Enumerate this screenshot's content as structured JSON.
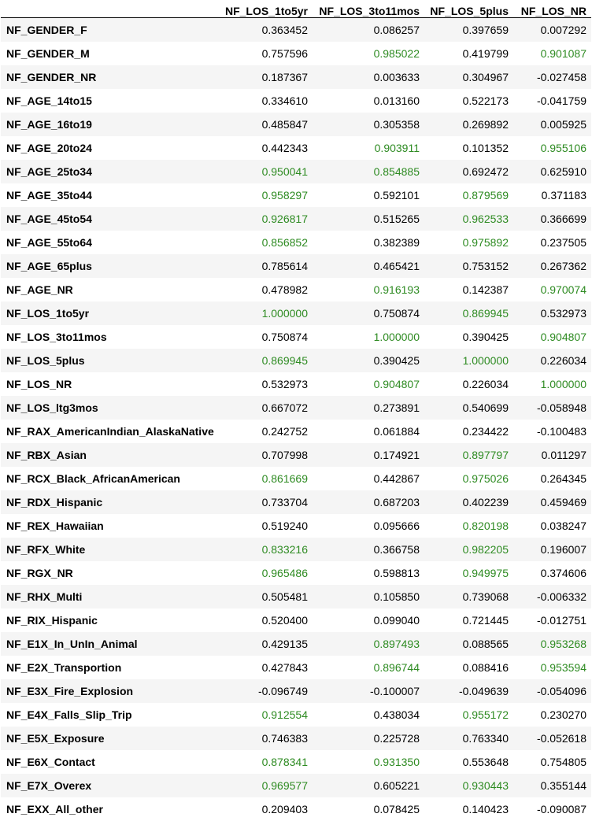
{
  "table": {
    "columns": [
      "",
      "NF_LOS_1to5yr",
      "NF_LOS_3to11mos",
      "NF_LOS_5plus",
      "NF_LOS_NR"
    ],
    "highlight_color": "#2e8b22",
    "highlight_threshold": 0.8,
    "rows": [
      {
        "label": "NF_GENDER_F",
        "values": [
          "0.363452",
          "0.086257",
          "0.397659",
          "0.007292"
        ]
      },
      {
        "label": "NF_GENDER_M",
        "values": [
          "0.757596",
          "0.985022",
          "0.419799",
          "0.901087"
        ]
      },
      {
        "label": "NF_GENDER_NR",
        "values": [
          "0.187367",
          "0.003633",
          "0.304967",
          "-0.027458"
        ]
      },
      {
        "label": "NF_AGE_14to15",
        "values": [
          "0.334610",
          "0.013160",
          "0.522173",
          "-0.041759"
        ]
      },
      {
        "label": "NF_AGE_16to19",
        "values": [
          "0.485847",
          "0.305358",
          "0.269892",
          "0.005925"
        ]
      },
      {
        "label": "NF_AGE_20to24",
        "values": [
          "0.442343",
          "0.903911",
          "0.101352",
          "0.955106"
        ]
      },
      {
        "label": "NF_AGE_25to34",
        "values": [
          "0.950041",
          "0.854885",
          "0.692472",
          "0.625910"
        ]
      },
      {
        "label": "NF_AGE_35to44",
        "values": [
          "0.958297",
          "0.592101",
          "0.879569",
          "0.371183"
        ]
      },
      {
        "label": "NF_AGE_45to54",
        "values": [
          "0.926817",
          "0.515265",
          "0.962533",
          "0.366699"
        ]
      },
      {
        "label": "NF_AGE_55to64",
        "values": [
          "0.856852",
          "0.382389",
          "0.975892",
          "0.237505"
        ]
      },
      {
        "label": "NF_AGE_65plus",
        "values": [
          "0.785614",
          "0.465421",
          "0.753152",
          "0.267362"
        ]
      },
      {
        "label": "NF_AGE_NR",
        "values": [
          "0.478982",
          "0.916193",
          "0.142387",
          "0.970074"
        ]
      },
      {
        "label": "NF_LOS_1to5yr",
        "values": [
          "1.000000",
          "0.750874",
          "0.869945",
          "0.532973"
        ]
      },
      {
        "label": "NF_LOS_3to11mos",
        "values": [
          "0.750874",
          "1.000000",
          "0.390425",
          "0.904807"
        ]
      },
      {
        "label": "NF_LOS_5plus",
        "values": [
          "0.869945",
          "0.390425",
          "1.000000",
          "0.226034"
        ]
      },
      {
        "label": "NF_LOS_NR",
        "values": [
          "0.532973",
          "0.904807",
          "0.226034",
          "1.000000"
        ]
      },
      {
        "label": "NF_LOS_ltg3mos",
        "values": [
          "0.667072",
          "0.273891",
          "0.540699",
          "-0.058948"
        ]
      },
      {
        "label": "NF_RAX_AmericanIndian_AlaskaNative",
        "values": [
          "0.242752",
          "0.061884",
          "0.234422",
          "-0.100483"
        ]
      },
      {
        "label": "NF_RBX_Asian",
        "values": [
          "0.707998",
          "0.174921",
          "0.897797",
          "0.011297"
        ]
      },
      {
        "label": "NF_RCX_Black_AfricanAmerican",
        "values": [
          "0.861669",
          "0.442867",
          "0.975026",
          "0.264345"
        ]
      },
      {
        "label": "NF_RDX_Hispanic",
        "values": [
          "0.733704",
          "0.687203",
          "0.402239",
          "0.459469"
        ]
      },
      {
        "label": "NF_REX_Hawaiian",
        "values": [
          "0.519240",
          "0.095666",
          "0.820198",
          "0.038247"
        ]
      },
      {
        "label": "NF_RFX_White",
        "values": [
          "0.833216",
          "0.366758",
          "0.982205",
          "0.196007"
        ]
      },
      {
        "label": "NF_RGX_NR",
        "values": [
          "0.965486",
          "0.598813",
          "0.949975",
          "0.374606"
        ]
      },
      {
        "label": "NF_RHX_Multi",
        "values": [
          "0.505481",
          "0.105850",
          "0.739068",
          "-0.006332"
        ]
      },
      {
        "label": "NF_RIX_Hispanic",
        "values": [
          "0.520400",
          "0.099040",
          "0.721445",
          "-0.012751"
        ]
      },
      {
        "label": "NF_E1X_In_UnIn_Animal",
        "values": [
          "0.429135",
          "0.897493",
          "0.088565",
          "0.953268"
        ]
      },
      {
        "label": "NF_E2X_Transportion",
        "values": [
          "0.427843",
          "0.896744",
          "0.088416",
          "0.953594"
        ]
      },
      {
        "label": "NF_E3X_Fire_Explosion",
        "values": [
          "-0.096749",
          "-0.100007",
          "-0.049639",
          "-0.054096"
        ]
      },
      {
        "label": "NF_E4X_Falls_Slip_Trip",
        "values": [
          "0.912554",
          "0.438034",
          "0.955172",
          "0.230270"
        ]
      },
      {
        "label": "NF_E5X_Exposure",
        "values": [
          "0.746383",
          "0.225728",
          "0.763340",
          "-0.052618"
        ]
      },
      {
        "label": "NF_E6X_Contact",
        "values": [
          "0.878341",
          "0.931350",
          "0.553648",
          "0.754805"
        ]
      },
      {
        "label": "NF_E7X_Overex",
        "values": [
          "0.969577",
          "0.605221",
          "0.930443",
          "0.355144"
        ]
      },
      {
        "label": "NF_EXX_All_other",
        "values": [
          "0.209403",
          "0.078425",
          "0.140423",
          "-0.090087"
        ]
      }
    ]
  }
}
